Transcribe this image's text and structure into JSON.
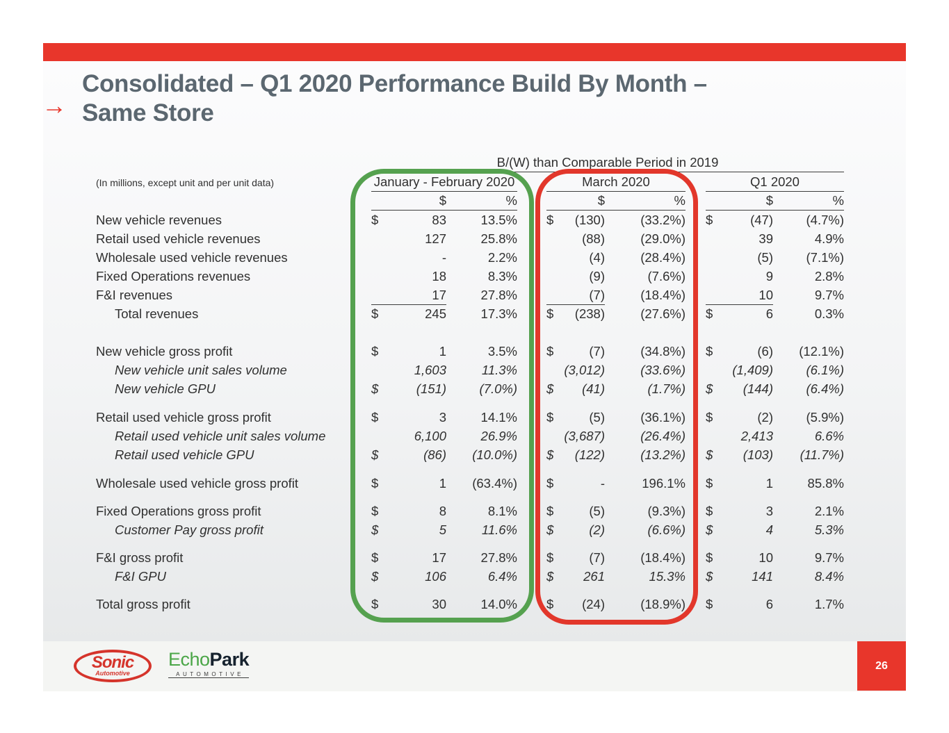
{
  "header": {
    "title_line1": "Consolidated – Q1 2020 Performance Build By Month –",
    "title_line2": "Same Store"
  },
  "icons": {
    "title_arrow": "→"
  },
  "table": {
    "note": "(In millions, except unit and per unit data)",
    "banner": "B/(W) than Comparable Period in 2019",
    "group_labels": [
      "January - February 2020",
      "March 2020",
      "Q1 2020"
    ],
    "col_dollar": "$",
    "col_percent": "%",
    "sections": [
      {
        "rows": [
          {
            "label": "New vehicle revenues",
            "cells": [
              [
                "$",
                "83",
                "13.5%"
              ],
              [
                "$",
                "(130)",
                "(33.2%)"
              ],
              [
                "$",
                "(47)",
                "(4.7%)"
              ]
            ]
          },
          {
            "label": "Retail used vehicle revenues",
            "cells": [
              [
                "",
                "127",
                "25.8%"
              ],
              [
                "",
                "(88)",
                "(29.0%)"
              ],
              [
                "",
                "39",
                "4.9%"
              ]
            ]
          },
          {
            "label": "Wholesale used vehicle revenues",
            "cells": [
              [
                "",
                "-",
                "2.2%"
              ],
              [
                "",
                "(4)",
                "(28.4%)"
              ],
              [
                "",
                "(5)",
                "(7.1%)"
              ]
            ]
          },
          {
            "label": "Fixed Operations revenues",
            "cells": [
              [
                "",
                "18",
                "8.3%"
              ],
              [
                "",
                "(9)",
                "(7.6%)"
              ],
              [
                "",
                "9",
                "2.8%"
              ]
            ]
          },
          {
            "label": "F&I revenues",
            "cells": [
              [
                "",
                "17",
                "27.8%"
              ],
              [
                "",
                "(7)",
                "(18.4%)"
              ],
              [
                "",
                "10",
                "9.7%"
              ]
            ]
          },
          {
            "label": "Total revenues",
            "indent": true,
            "rule_above": true,
            "cells": [
              [
                "$",
                "245",
                "17.3%"
              ],
              [
                "$",
                "(238)",
                "(27.6%)"
              ],
              [
                "$",
                "6",
                "0.3%"
              ]
            ]
          }
        ]
      },
      {
        "rows": [
          {
            "label": "New vehicle gross profit",
            "cells": [
              [
                "$",
                "1",
                "3.5%"
              ],
              [
                "$",
                "(7)",
                "(34.8%)"
              ],
              [
                "$",
                "(6)",
                "(12.1%)"
              ]
            ]
          },
          {
            "label": "New vehicle unit sales volume",
            "italic": true,
            "indent": true,
            "cells": [
              [
                "",
                "1,603",
                "11.3%"
              ],
              [
                "",
                "(3,012)",
                "(33.6%)"
              ],
              [
                "",
                "(1,409)",
                "(6.1%)"
              ]
            ]
          },
          {
            "label": "New vehicle GPU",
            "italic": true,
            "indent": true,
            "cells": [
              [
                "$",
                "(151)",
                "(7.0%)"
              ],
              [
                "$",
                "(41)",
                "(1.7%)"
              ],
              [
                "$",
                "(144)",
                "(6.4%)"
              ]
            ]
          }
        ]
      },
      {
        "rows": [
          {
            "label": "Retail used vehicle gross profit",
            "cells": [
              [
                "$",
                "3",
                "14.1%"
              ],
              [
                "$",
                "(5)",
                "(36.1%)"
              ],
              [
                "$",
                "(2)",
                "(5.9%)"
              ]
            ]
          },
          {
            "label": "Retail used vehicle unit sales volume",
            "italic": true,
            "indent": true,
            "cells": [
              [
                "",
                "6,100",
                "26.9%"
              ],
              [
                "",
                "(3,687)",
                "(26.4%)"
              ],
              [
                "",
                "2,413",
                "6.6%"
              ]
            ]
          },
          {
            "label": "Retail used vehicle GPU",
            "italic": true,
            "indent": true,
            "cells": [
              [
                "$",
                "(86)",
                "(10.0%)"
              ],
              [
                "$",
                "(122)",
                "(13.2%)"
              ],
              [
                "$",
                "(103)",
                "(11.7%)"
              ]
            ]
          }
        ]
      },
      {
        "rows": [
          {
            "label": "Wholesale used vehicle gross profit",
            "cells": [
              [
                "$",
                "1",
                "(63.4%)"
              ],
              [
                "$",
                "-",
                "196.1%"
              ],
              [
                "$",
                "1",
                "85.8%"
              ]
            ]
          }
        ]
      },
      {
        "rows": [
          {
            "label": "Fixed Operations gross profit",
            "cells": [
              [
                "$",
                "8",
                "8.1%"
              ],
              [
                "$",
                "(5)",
                "(9.3%)"
              ],
              [
                "$",
                "3",
                "2.1%"
              ]
            ]
          },
          {
            "label": "Customer Pay gross profit",
            "italic": true,
            "indent": true,
            "cells": [
              [
                "$",
                "5",
                "11.6%"
              ],
              [
                "$",
                "(2)",
                "(6.6%)"
              ],
              [
                "$",
                "4",
                "5.3%"
              ]
            ]
          }
        ]
      },
      {
        "rows": [
          {
            "label": "F&I gross profit",
            "cells": [
              [
                "$",
                "17",
                "27.8%"
              ],
              [
                "$",
                "(7)",
                "(18.4%)"
              ],
              [
                "$",
                "10",
                "9.7%"
              ]
            ]
          },
          {
            "label": "F&I GPU",
            "italic": true,
            "indent": true,
            "cells": [
              [
                "$",
                "106",
                "6.4%"
              ],
              [
                "$",
                "261",
                "15.3%"
              ],
              [
                "$",
                "141",
                "8.4%"
              ]
            ]
          }
        ]
      },
      {
        "rows": [
          {
            "label": "Total gross profit",
            "cells": [
              [
                "$",
                "30",
                "14.0%"
              ],
              [
                "$",
                "(24)",
                "(18.9%)"
              ],
              [
                "$",
                "6",
                "1.7%"
              ]
            ]
          }
        ]
      }
    ]
  },
  "footer": {
    "page_number": "26",
    "sonic_name": "Sonic",
    "sonic_sub": "Automotive",
    "echopark_green": "Echo",
    "echopark_dark": "Park",
    "echopark_sub": "AUTOMOTIVE"
  },
  "colors": {
    "accent_red": "#E8362B",
    "highlight_green": "#55A14F",
    "highlight_red": "#E2372B",
    "title_gray": "#5B6770"
  }
}
